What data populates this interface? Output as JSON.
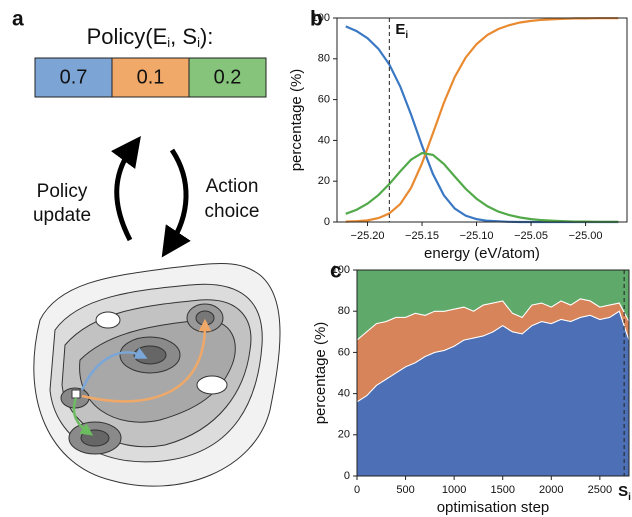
{
  "panel_a": {
    "label": "a",
    "title": [
      "Policy(E",
      "i",
      ", S",
      "i",
      "):"
    ],
    "policy": [
      {
        "value": 0.7,
        "color": "#7ca4d5"
      },
      {
        "value": 0.1,
        "color": "#f1a96a"
      },
      {
        "value": 0.2,
        "color": "#86c47c"
      }
    ],
    "left_label": [
      "Policy",
      "update"
    ],
    "right_label": [
      "Action",
      "choice"
    ]
  },
  "chart_data": [
    {
      "type": "line",
      "label": "b",
      "x_label": "energy (eV/atom)",
      "y_label": "percentage (%)",
      "x": [
        -25.22,
        -25.21,
        -25.2,
        -25.19,
        -25.18,
        -25.17,
        -25.16,
        -25.15,
        -25.14,
        -25.13,
        -25.12,
        -25.11,
        -25.1,
        -25.09,
        -25.08,
        -25.07,
        -25.06,
        -25.05,
        -25.04,
        -25.03,
        -25.02,
        -25.01,
        -25.0,
        -24.99,
        -24.98,
        -24.97
      ],
      "series": [
        {
          "color": "#3a78c4",
          "values": [
            95.9,
            93.6,
            90.1,
            84.9,
            77.2,
            66.4,
            52.6,
            37.4,
            23.5,
            13.1,
            6.6,
            3.1,
            1.4,
            0.6,
            0.3,
            0.1,
            0,
            0,
            0,
            0,
            0,
            0,
            0,
            0,
            0,
            0
          ]
        },
        {
          "color": "#ea8a30",
          "values": [
            0.2,
            0.4,
            0.8,
            1.9,
            4.2,
            8.8,
            16.8,
            28.8,
            43.5,
            58.4,
            71.1,
            80.6,
            87.2,
            91.7,
            94.6,
            96.5,
            97.8,
            98.6,
            99.1,
            99.4,
            99.6,
            99.8,
            99.8,
            99.9,
            99.9,
            99.9
          ]
        },
        {
          "color": "#52a94a",
          "values": [
            4.0,
            6.0,
            9.0,
            13.2,
            18.6,
            24.8,
            30.6,
            33.8,
            32.9,
            28.5,
            22.3,
            16.3,
            11.4,
            7.7,
            5.1,
            3.4,
            2.2,
            1.4,
            0.9,
            0.6,
            0.4,
            0.2,
            0.2,
            0.1,
            0.1,
            0.1
          ]
        }
      ],
      "xlim": [
        -25.228,
        -24.962
      ],
      "ylim": [
        0,
        100
      ],
      "xticks": [
        {
          "value": -25.2,
          "label": "−25.20"
        },
        {
          "value": -25.15,
          "label": "−25.15"
        },
        {
          "value": -25.1,
          "label": "−25.10"
        },
        {
          "value": -25.05,
          "label": "−25.05"
        },
        {
          "value": -25.0,
          "label": "−25.00"
        }
      ],
      "yticks": [
        0,
        20,
        40,
        60,
        80,
        100
      ],
      "marker_x": -25.18,
      "marker_label": "E",
      "marker_label_sub": "i"
    },
    {
      "type": "stacked_area",
      "label": "c",
      "x_label": "optimisation step",
      "y_label": "percentage (%)",
      "x": [
        0,
        100,
        200,
        300,
        400,
        500,
        600,
        700,
        800,
        900,
        1000,
        1100,
        1200,
        1300,
        1400,
        1500,
        1600,
        1700,
        1800,
        1900,
        2000,
        2100,
        2200,
        2300,
        2400,
        2500,
        2600,
        2700,
        2800
      ],
      "series": [
        {
          "color": "#4c6fb6",
          "values": [
            36,
            39,
            44,
            47,
            50,
            53,
            55,
            58,
            60,
            61,
            63,
            66,
            67,
            68,
            70,
            73,
            70,
            69,
            73,
            75,
            74,
            76,
            75,
            77,
            78,
            76,
            77,
            80,
            66
          ]
        },
        {
          "color": "#d8845a",
          "values": [
            30,
            31,
            30,
            28,
            27,
            24,
            24,
            20,
            20,
            19,
            18,
            16,
            13,
            15,
            14,
            12,
            9,
            8,
            10,
            9,
            8,
            9,
            8,
            9,
            7,
            6,
            6,
            4,
            9
          ]
        },
        {
          "color": "#5fa96a",
          "values": [
            34,
            30,
            26,
            25,
            23,
            23,
            21,
            22,
            20,
            20,
            19,
            18,
            20,
            17,
            16,
            15,
            21,
            23,
            17,
            16,
            18,
            15,
            17,
            14,
            15,
            18,
            17,
            16,
            25
          ]
        }
      ],
      "xlim": [
        0,
        2800
      ],
      "ylim": [
        0,
        100
      ],
      "xticks": [
        0,
        500,
        1000,
        1500,
        2000,
        2500
      ],
      "yticks": [
        0,
        20,
        40,
        60,
        80,
        100
      ],
      "marker_x": 2750,
      "marker_label": "S",
      "marker_label_sub": "i"
    }
  ]
}
